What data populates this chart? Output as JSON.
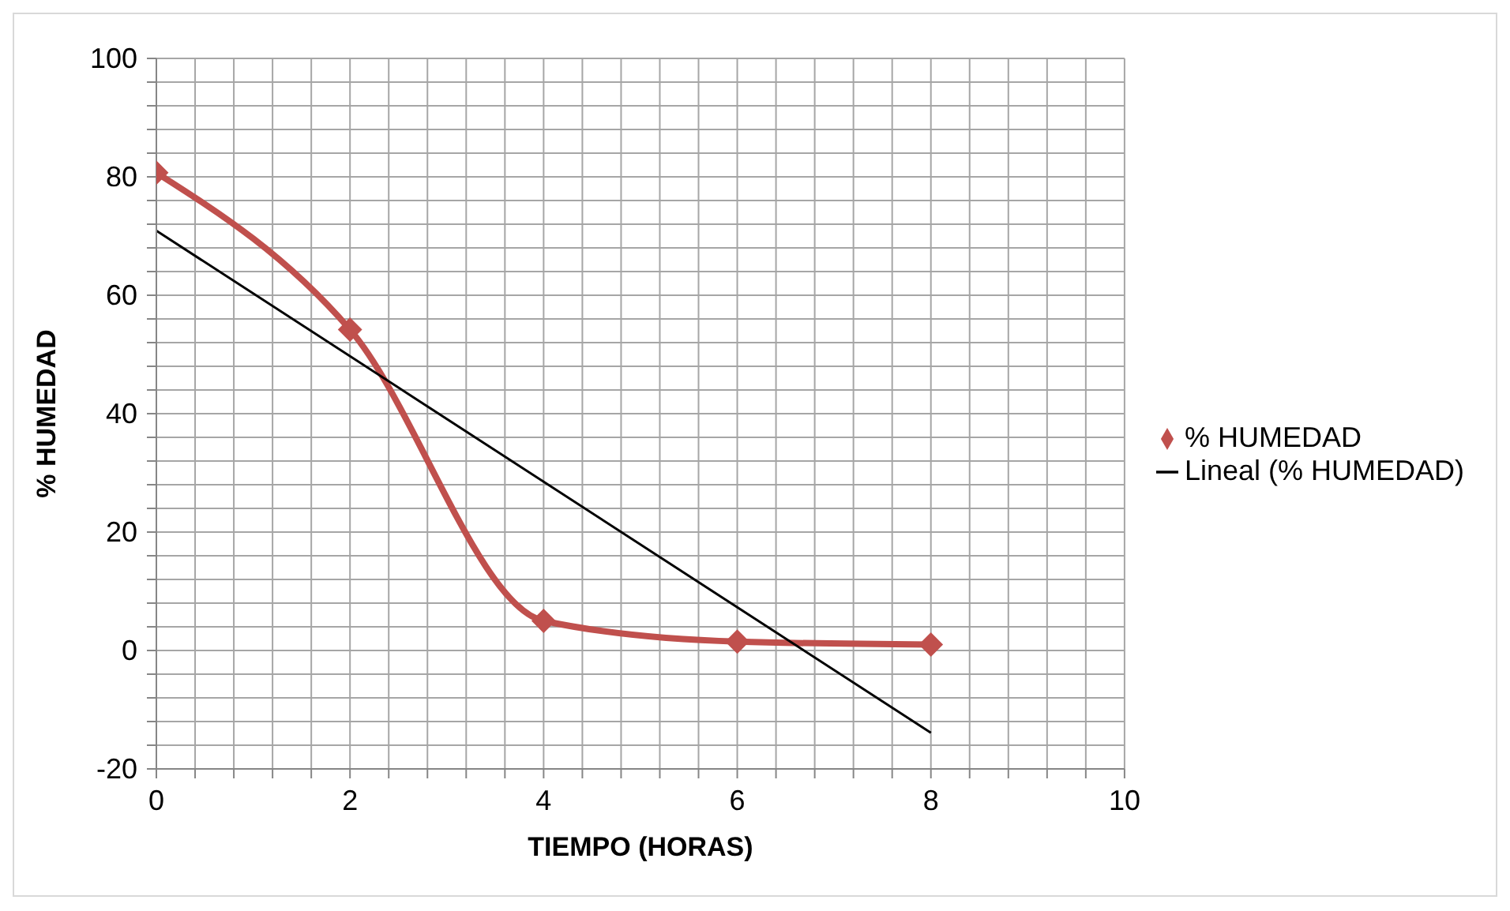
{
  "chart_data": {
    "type": "line",
    "xlabel": "TIEMPO (HORAS)",
    "ylabel": "% HUMEDAD",
    "x": [
      0,
      2,
      4,
      6,
      8
    ],
    "series": [
      {
        "name": "% HUMEDAD",
        "color": "#c0504d",
        "values": [
          80.7,
          54.2,
          5,
          1.5,
          1
        ],
        "marker": "diamond"
      },
      {
        "name": "Lineal (% HUMEDAD)",
        "color": "#000000",
        "x": [
          0,
          8
        ],
        "values": [
          70.9,
          -13.9
        ],
        "marker": "none"
      }
    ],
    "xlim": [
      0,
      10
    ],
    "ylim": [
      -20,
      100
    ],
    "xticks": [
      0,
      {
        "value": 0.4,
        "label": null
      },
      {
        "value": 0.8,
        "label": null
      },
      {
        "value": 1.2,
        "label": null
      },
      {
        "value": 1.6,
        "label": null
      },
      2,
      {
        "value": 2.4,
        "label": null
      },
      {
        "value": 2.8,
        "label": null
      },
      {
        "value": 3.2,
        "label": null
      },
      {
        "value": 3.6,
        "label": null
      },
      4,
      {
        "value": 4.4,
        "label": null
      },
      {
        "value": 4.8,
        "label": null
      },
      {
        "value": 5.2,
        "label": null
      },
      {
        "value": 5.6,
        "label": null
      },
      6,
      {
        "value": 6.4,
        "label": null
      },
      {
        "value": 6.8,
        "label": null
      },
      {
        "value": 7.2,
        "label": null
      },
      {
        "value": 7.6,
        "label": null
      },
      8,
      {
        "value": 8.4,
        "label": null
      },
      {
        "value": 8.8,
        "label": null
      },
      {
        "value": 9.2,
        "label": null
      },
      {
        "value": 9.6,
        "label": null
      },
      10
    ],
    "yticks": [
      -20,
      {
        "value": -16,
        "label": null
      },
      {
        "value": -12,
        "label": null
      },
      {
        "value": -8,
        "label": null
      },
      {
        "value": -4,
        "label": null
      },
      0,
      {
        "value": 4,
        "label": null
      },
      {
        "value": 8,
        "label": null
      },
      {
        "value": 12,
        "label": null
      },
      {
        "value": 16,
        "label": null
      },
      20,
      {
        "value": 24,
        "label": null
      },
      {
        "value": 28,
        "label": null
      },
      {
        "value": 32,
        "label": null
      },
      {
        "value": 36,
        "label": null
      },
      40,
      {
        "value": 44,
        "label": null
      },
      {
        "value": 48,
        "label": null
      },
      {
        "value": 52,
        "label": null
      },
      {
        "value": 56,
        "label": null
      },
      60,
      {
        "value": 64,
        "label": null
      },
      {
        "value": 68,
        "label": null
      },
      {
        "value": 72,
        "label": null
      },
      {
        "value": 76,
        "label": null
      },
      80,
      {
        "value": 84,
        "label": null
      },
      {
        "value": 88,
        "label": null
      },
      {
        "value": 92,
        "label": null
      },
      {
        "value": 96,
        "label": null
      },
      100
    ],
    "grid": true,
    "legend": "right",
    "line_style": "solid"
  }
}
